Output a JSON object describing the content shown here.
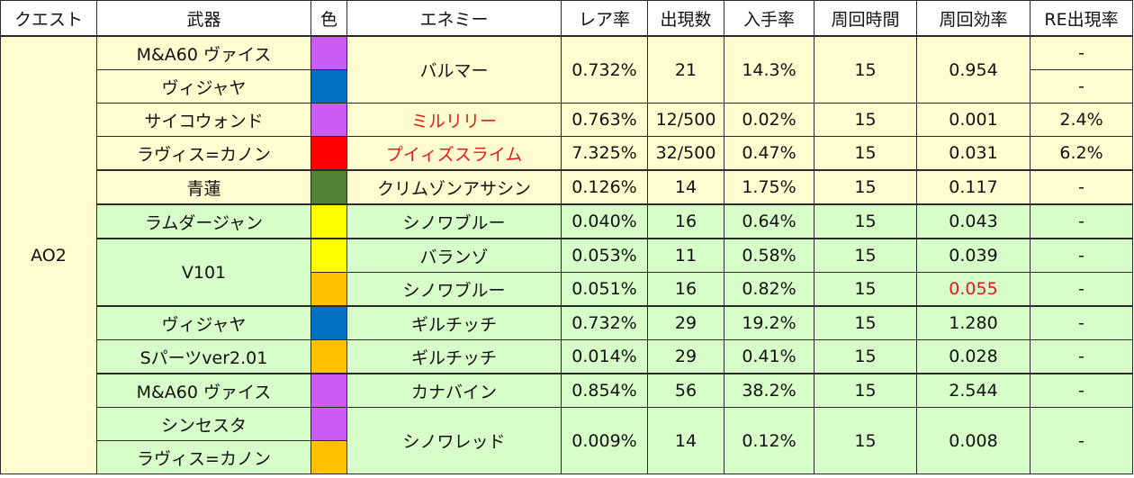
{
  "headers": [
    "クエスト",
    "武器",
    "色",
    "エネミー",
    "レア率",
    "出現数",
    "入手率",
    "周回時間",
    "周回効率",
    "RE出現率"
  ],
  "quest": "AO2",
  "colors": {
    "purple": "#c95df5",
    "blue": "#0070c0",
    "red": "#ff0000",
    "darkgreen": "#548235",
    "yellow": "#ffff00",
    "orange": "#ffc000",
    "yellow_bg": "#fffdd0",
    "green_bg": "#d7fdc9",
    "highlight_text": "#e31a1a"
  },
  "rows": [
    {
      "weapon": "M&A60 ヴァイス",
      "color": "purple",
      "enemy": "バルマー",
      "rare": "0.732%",
      "count": "21",
      "obtain": "14.3%",
      "time": "15",
      "eff": "0.954",
      "re": "-"
    },
    {
      "weapon": "ヴィジャヤ",
      "color": "blue",
      "re": "-"
    },
    {
      "weapon": "サイコウォンド",
      "color": "purple",
      "enemy": "ミルリリー",
      "rare": "0.763%",
      "count": "12/500",
      "obtain": "0.02%",
      "time": "15",
      "eff": "0.001",
      "re": "2.4%"
    },
    {
      "weapon": "ラヴィス=カノン",
      "color": "red",
      "enemy": "プイィズスライム",
      "rare": "7.325%",
      "count": "32/500",
      "obtain": "0.47%",
      "time": "15",
      "eff": "0.031",
      "re": "6.2%"
    },
    {
      "weapon": "青蓮",
      "color": "darkgreen",
      "enemy": "クリムゾンアサシン",
      "rare": "0.126%",
      "count": "14",
      "obtain": "1.75%",
      "time": "15",
      "eff": "0.117",
      "re": "-"
    },
    {
      "weapon": "ラムダージャン",
      "color": "yellow",
      "enemy": "シノワブルー",
      "rare": "0.040%",
      "count": "16",
      "obtain": "0.64%",
      "time": "15",
      "eff": "0.043",
      "re": "-"
    },
    {
      "weapon": "V101",
      "color": "yellow",
      "enemy": "バランゾ",
      "rare": "0.053%",
      "count": "11",
      "obtain": "0.58%",
      "time": "15",
      "eff": "0.039",
      "re": "-"
    },
    {
      "color": "orange",
      "enemy": "シノワブルー",
      "rare": "0.051%",
      "count": "16",
      "obtain": "0.82%",
      "time": "15",
      "eff": "0.055",
      "re": "-"
    },
    {
      "weapon": "ヴィジャヤ",
      "color": "blue",
      "enemy": "ギルチッチ",
      "rare": "0.732%",
      "count": "29",
      "obtain": "19.2%",
      "time": "15",
      "eff": "1.280",
      "re": "-"
    },
    {
      "weapon": "Sパーツver2.01",
      "color": "orange",
      "enemy": "ギルチッチ",
      "rare": "0.014%",
      "count": "29",
      "obtain": "0.41%",
      "time": "15",
      "eff": "0.028",
      "re": "-"
    },
    {
      "weapon": "M&A60 ヴァイス",
      "color": "purple",
      "enemy": "カナバイン",
      "rare": "0.854%",
      "count": "56",
      "obtain": "38.2%",
      "time": "15",
      "eff": "2.544",
      "re": "-"
    },
    {
      "weapon": "シンセスタ",
      "color": "purple",
      "enemy": "シノワレッド",
      "rare": "0.009%",
      "count": "14",
      "obtain": "0.12%",
      "time": "15",
      "eff": "0.008",
      "re": "-"
    },
    {
      "weapon": "ラヴィス=カノン",
      "color": "orange"
    }
  ]
}
